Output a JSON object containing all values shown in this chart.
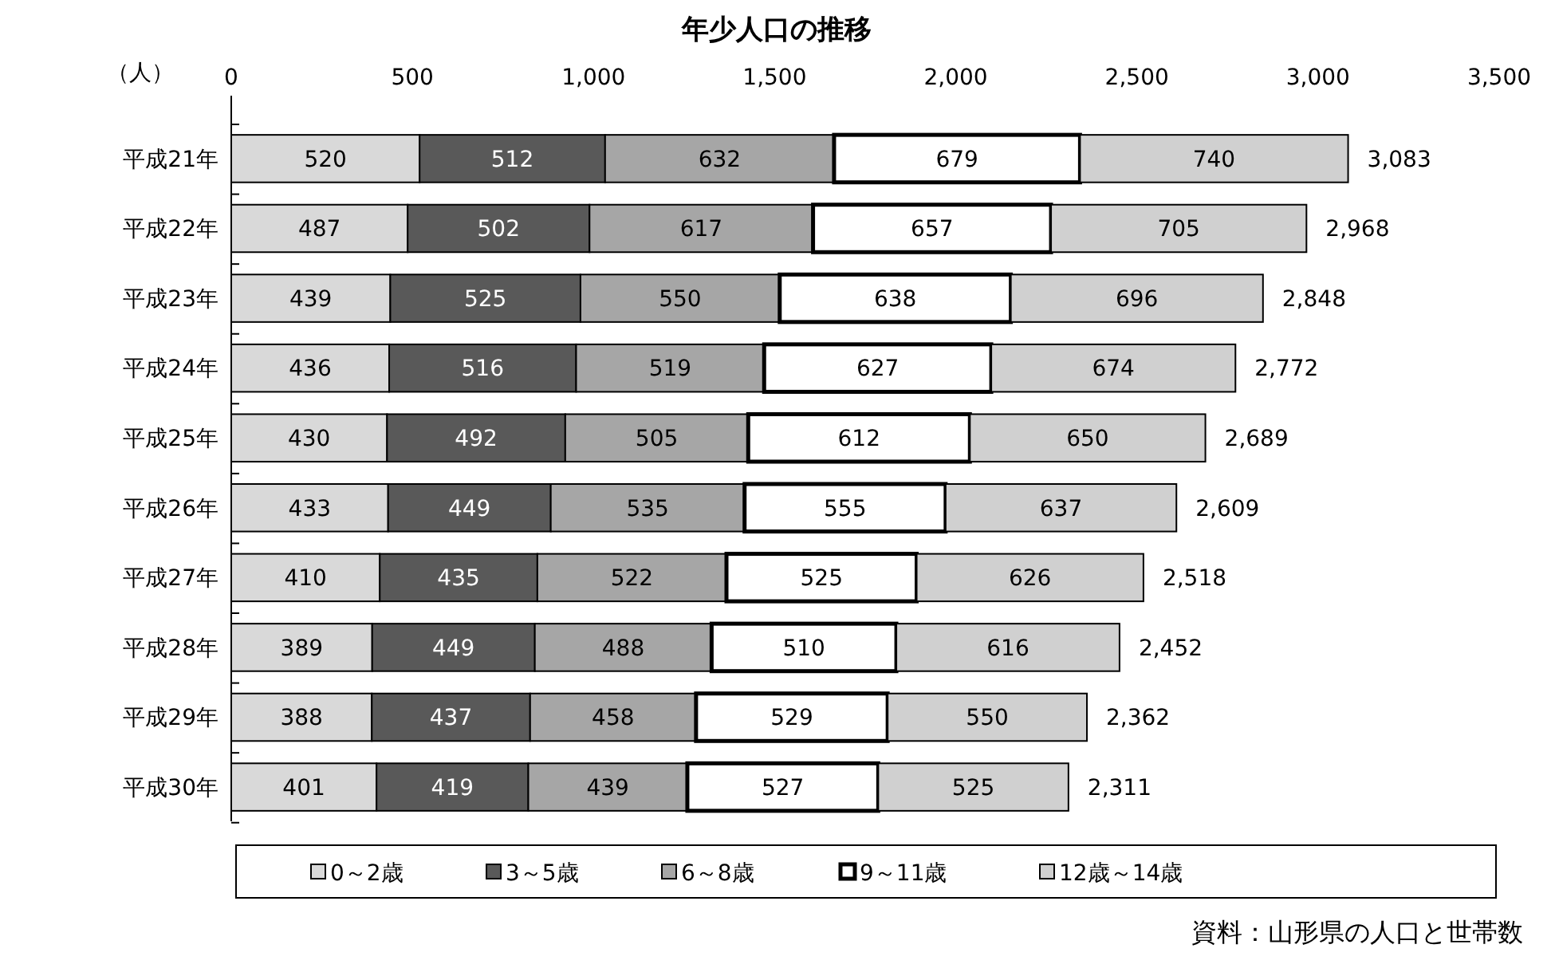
{
  "chart_data": {
    "type": "bar",
    "orientation": "horizontal",
    "stacked": true,
    "title": "年少人口の推移",
    "xlabel": "（人）",
    "categories": [
      "平成21年",
      "平成22年",
      "平成23年",
      "平成24年",
      "平成25年",
      "平成26年",
      "平成27年",
      "平成28年",
      "平成29年",
      "平成30年"
    ],
    "series": [
      {
        "name": "0～2歳",
        "color": "#d9d9d9",
        "values": [
          520,
          487,
          439,
          436,
          430,
          433,
          410,
          389,
          388,
          401
        ]
      },
      {
        "name": "3～5歳",
        "color": "#595959",
        "values": [
          512,
          502,
          525,
          516,
          492,
          449,
          435,
          449,
          437,
          419
        ]
      },
      {
        "name": "6～8歳",
        "color": "#a6a6a6",
        "values": [
          632,
          617,
          550,
          519,
          505,
          535,
          522,
          488,
          458,
          439
        ]
      },
      {
        "name": "9～11歳",
        "color": "#ffffff",
        "values": [
          679,
          657,
          638,
          627,
          612,
          555,
          525,
          510,
          529,
          527
        ]
      },
      {
        "name": "12歳～14歳",
        "color": "#d0d0d0",
        "values": [
          740,
          705,
          696,
          674,
          650,
          637,
          626,
          616,
          550,
          525
        ]
      }
    ],
    "xlim": [
      0,
      3500
    ],
    "xticks": [
      0,
      500,
      {
        "value": 1000,
        "label": "1,000"
      },
      {
        "value": 1500,
        "label": "1,500"
      },
      {
        "value": 2000,
        "label": "2,000"
      },
      {
        "value": 2500,
        "label": "2,500"
      },
      {
        "value": 3000,
        "label": "3,000"
      },
      {
        "value": 3500,
        "label": "3,500"
      }
    ],
    "data_labels": true,
    "totals": [
      "3,083",
      "2,968",
      "2,848",
      "2,772",
      "2,689",
      "2,609",
      "2,518",
      "2,452",
      "2,362",
      "2,311"
    ],
    "legend": "bottom",
    "annotations": [
      "資料：山形県の人口と世帯数"
    ]
  }
}
